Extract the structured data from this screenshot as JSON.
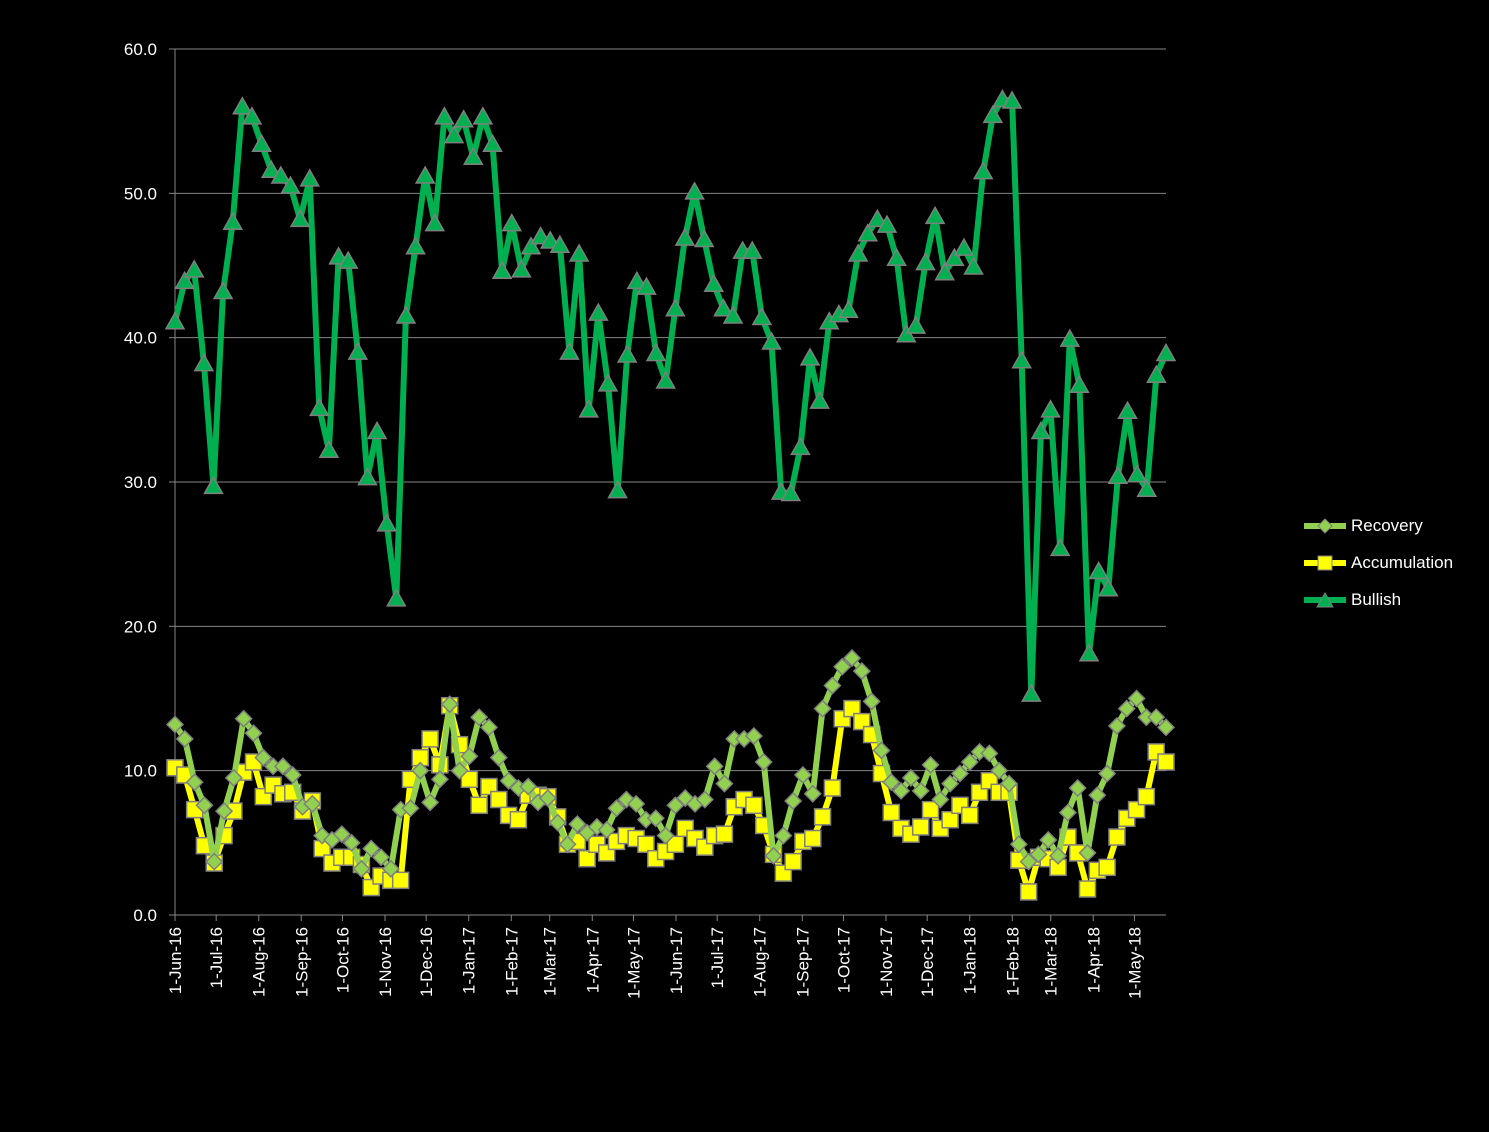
{
  "chart_data": {
    "type": "line",
    "title": "",
    "xlabel": "",
    "ylabel": "",
    "ylim": [
      0,
      60
    ],
    "y_ticks": [
      "0.0",
      "10.0",
      "20.0",
      "30.0",
      "40.0",
      "50.0",
      "60.0"
    ],
    "x_tick_labels": [
      "1-Jun-16",
      "1-Jul-16",
      "1-Aug-16",
      "1-Sep-16",
      "1-Oct-16",
      "1-Nov-16",
      "1-Dec-16",
      "1-Jan-17",
      "1-Feb-17",
      "1-Mar-17",
      "1-Apr-17",
      "1-May-17",
      "1-Jun-17",
      "1-Jul-17",
      "1-Aug-17",
      "1-Sep-17",
      "1-Oct-17",
      "1-Nov-17",
      "1-Dec-17",
      "1-Jan-18",
      "1-Feb-18",
      "1-Mar-18",
      "1-Apr-18",
      "1-May-18"
    ],
    "x_start": "2016-06-01",
    "x_end": "2018-05-24",
    "grid": true,
    "legend_position": "right",
    "series": [
      {
        "name": "Recovery",
        "color": "#92d050",
        "marker": "diamond",
        "values": [
          13.2,
          12.2,
          9.2,
          7.6,
          3.7,
          7.2,
          9.5,
          13.6,
          12.6,
          10.9,
          10.3,
          10.3,
          9.7,
          7.5,
          7.7,
          5.5,
          5.2,
          5.6,
          5.0,
          3.2,
          4.6,
          4.0,
          3.2,
          7.3,
          7.4,
          10.0,
          7.8,
          9.4,
          14.6,
          10.0,
          11.0,
          13.7,
          13.0,
          10.9,
          9.3,
          8.8,
          8.9,
          7.8,
          8.1,
          6.4,
          4.9,
          6.3,
          5.7,
          6.1,
          5.9,
          7.4,
          8.0,
          7.7,
          6.6,
          6.7,
          5.5,
          7.6,
          8.1,
          7.7,
          8.0,
          10.3,
          9.1,
          12.2,
          12.2,
          12.4,
          10.6,
          4.1,
          5.5,
          7.9,
          9.7,
          8.4,
          14.3,
          15.9,
          17.2,
          17.8,
          16.9,
          14.8,
          11.4,
          9.2,
          8.6,
          9.5,
          8.6,
          10.4,
          8.0,
          9.1,
          9.8,
          10.6,
          11.3,
          11.2,
          10.0,
          9.1,
          4.9,
          3.7,
          4.2,
          5.2,
          4.1,
          7.1,
          8.8,
          4.3,
          8.3,
          9.8,
          13.1,
          14.3,
          15.0,
          13.7,
          13.7,
          13.0
        ]
      },
      {
        "name": "Accumulation",
        "color": "#ffff00",
        "marker": "square",
        "values": [
          10.2,
          9.7,
          7.3,
          4.8,
          3.6,
          5.5,
          7.2,
          9.9,
          10.6,
          8.2,
          9.0,
          8.4,
          8.5,
          7.2,
          7.9,
          4.6,
          3.6,
          4.0,
          4.0,
          3.5,
          1.9,
          2.7,
          2.4,
          2.4,
          9.4,
          10.9,
          12.2,
          10.4,
          14.5,
          11.8,
          9.4,
          7.6,
          8.9,
          8.0,
          6.9,
          6.6,
          8.3,
          8.3,
          8.2,
          6.8,
          4.9,
          5.1,
          3.9,
          4.9,
          4.3,
          5.1,
          5.5,
          5.3,
          4.9,
          3.9,
          4.4,
          4.9,
          6.0,
          5.3,
          4.7,
          5.5,
          5.6,
          7.5,
          8.0,
          7.6,
          6.2,
          4.2,
          2.9,
          3.7,
          5.1,
          5.3,
          6.8,
          8.8,
          13.6,
          14.3,
          13.4,
          12.5,
          9.8,
          7.1,
          6.0,
          5.6,
          6.1,
          7.3,
          6.0,
          6.6,
          7.6,
          6.9,
          8.5,
          9.3,
          8.5,
          8.5,
          3.8,
          1.6,
          4.0,
          3.9,
          3.3,
          5.4,
          4.3,
          1.8,
          3.1,
          3.3,
          5.4,
          6.7,
          7.3,
          8.2,
          11.3,
          10.6
        ]
      },
      {
        "name": "Bullish",
        "color": "#00b050",
        "marker": "triangle",
        "values": [
          41.1,
          43.9,
          44.7,
          38.2,
          29.7,
          43.2,
          48.0,
          56.0,
          55.3,
          53.4,
          51.6,
          51.2,
          50.5,
          48.2,
          51.0,
          35.1,
          32.2,
          45.6,
          45.3,
          39.0,
          30.3,
          33.5,
          27.1,
          21.9,
          41.5,
          46.3,
          51.2,
          47.9,
          55.3,
          54.0,
          55.1,
          52.5,
          55.3,
          53.4,
          44.6,
          47.9,
          44.7,
          46.3,
          47.0,
          46.7,
          46.4,
          39.0,
          45.8,
          35.0,
          41.7,
          36.8,
          29.4,
          38.8,
          43.9,
          43.5,
          38.9,
          37.0,
          42.0,
          46.9,
          50.1,
          46.8,
          43.7,
          42.0,
          41.5,
          46.0,
          46.0,
          41.4,
          39.7,
          29.3,
          29.2,
          32.4,
          38.6,
          35.6,
          41.1,
          41.6,
          41.9,
          45.8,
          47.2,
          48.2,
          47.8,
          45.5,
          40.2,
          40.8,
          45.2,
          48.4,
          44.5,
          45.5,
          46.2,
          44.9,
          51.5,
          55.4,
          56.5,
          56.4,
          38.4,
          15.3,
          33.5,
          35.0,
          25.4,
          39.9,
          36.7,
          18.1,
          23.8,
          22.6,
          30.4,
          34.9,
          30.5,
          29.5,
          37.4,
          38.9
        ]
      }
    ]
  }
}
